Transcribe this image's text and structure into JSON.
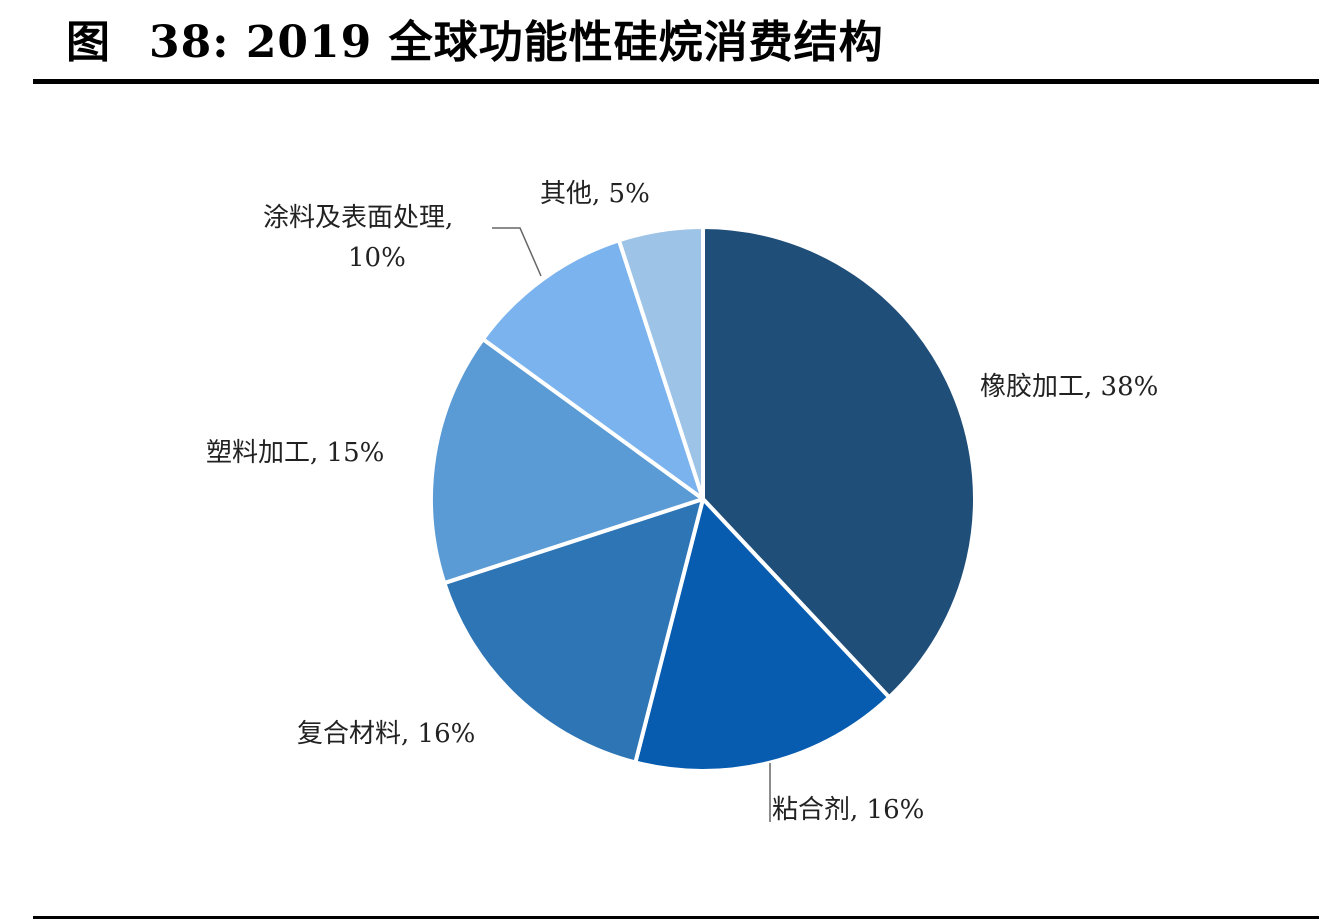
{
  "figure": {
    "label": "图",
    "number": "38:",
    "title": "2019 全球功能性硅烷消费结构"
  },
  "chart_data": {
    "type": "pie",
    "start_angle_deg": 0,
    "direction": "clockwise",
    "slices": [
      {
        "name": "橡胶加工",
        "value": 38,
        "label_line1": "橡胶加工, 38%",
        "label_line2": "",
        "color": "#1f4e79"
      },
      {
        "name": "粘合剂",
        "value": 16,
        "label_line1": "粘合剂, 16%",
        "label_line2": "",
        "color": "#075cb0"
      },
      {
        "name": "复合材料",
        "value": 16,
        "label_line1": "复合材料, 16%",
        "label_line2": "",
        "color": "#2e75b6"
      },
      {
        "name": "塑料加工",
        "value": 15,
        "label_line1": "塑料加工, 15%",
        "label_line2": "",
        "color": "#5b9bd5"
      },
      {
        "name": "涂料及表面处理",
        "value": 10,
        "label_line1": "涂料及表面处理,",
        "label_line2": "10%",
        "color": "#7ab3ee"
      },
      {
        "name": "其他",
        "value": 5,
        "label_line1": "其他, 5%",
        "label_line2": "",
        "color": "#9dc3e6"
      }
    ]
  }
}
